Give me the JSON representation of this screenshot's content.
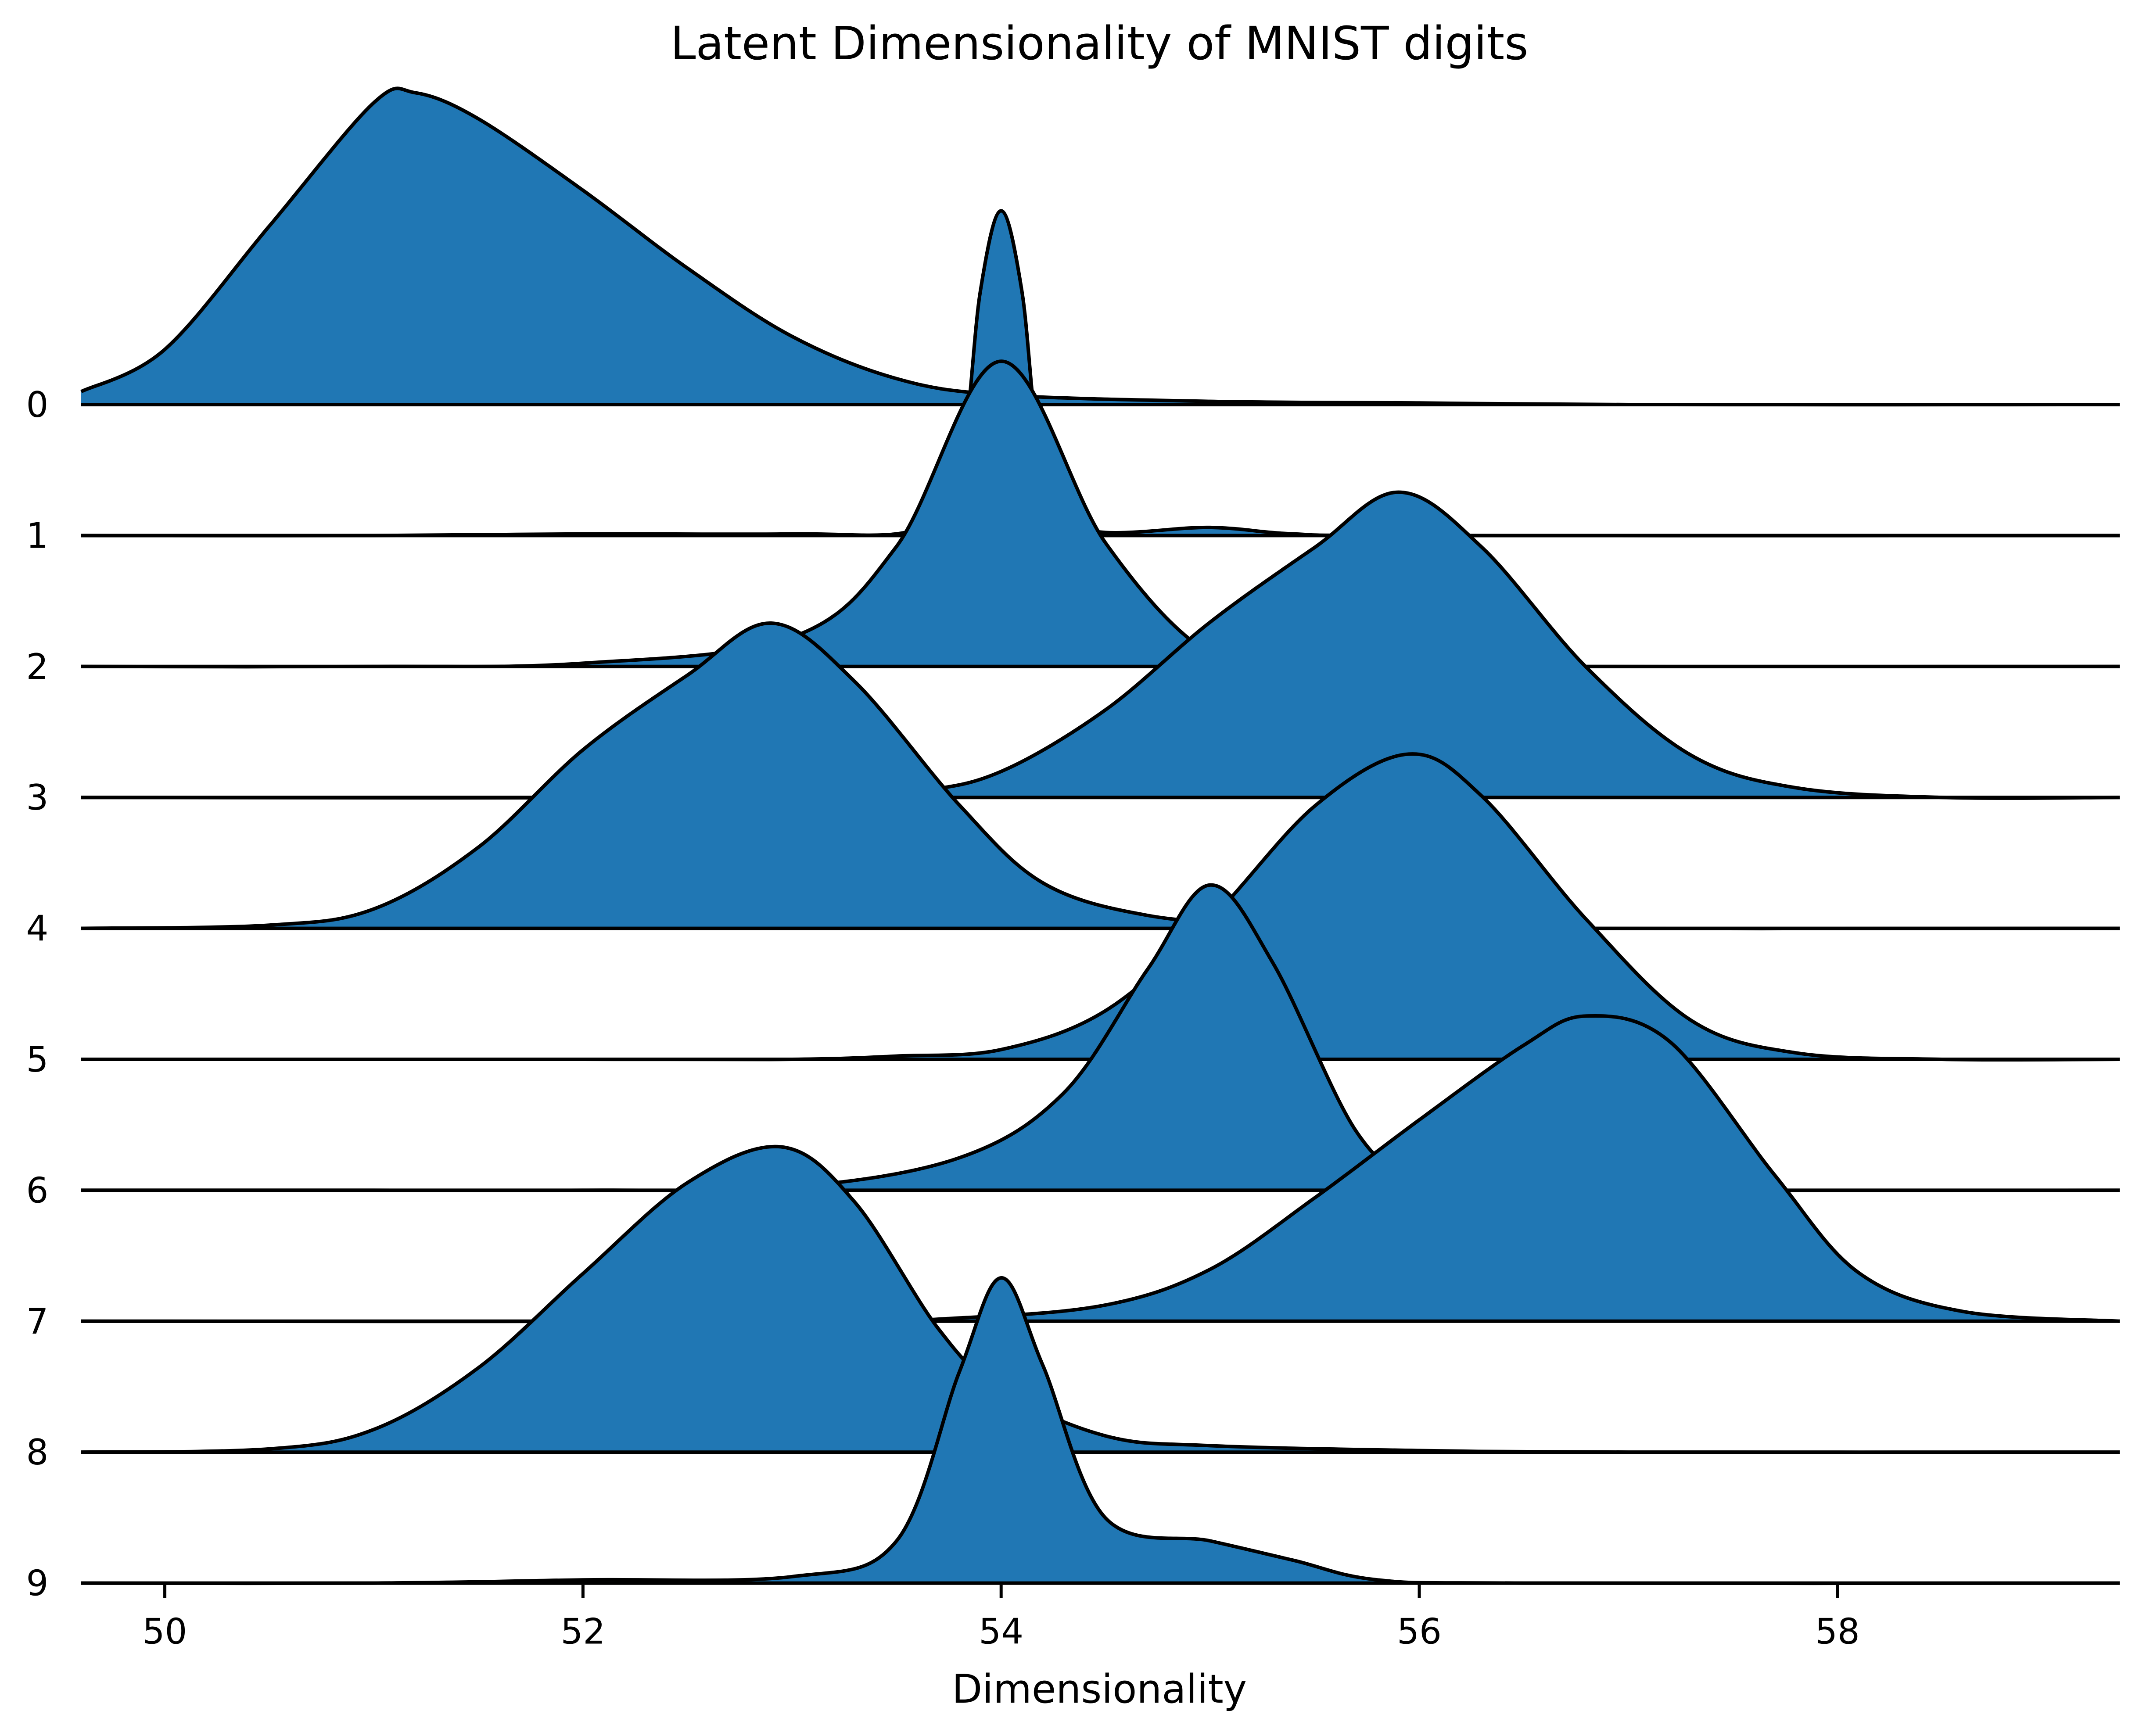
{
  "chart_data": {
    "type": "area",
    "subtype": "ridgeline",
    "title": "Latent Dimensionality of MNIST digits",
    "xlabel": "Dimensionality",
    "ylabel": "",
    "xlim": [
      49.6,
      59.35
    ],
    "xticks": [
      50,
      52,
      54,
      56,
      58
    ],
    "xtick_labels": [
      "50",
      "52",
      "54",
      "56",
      "58"
    ],
    "grid": false,
    "legend": "none",
    "fill_color": "#2077b4",
    "line_color": "#000000",
    "categories": [
      "0",
      "1",
      "2",
      "3",
      "4",
      "5",
      "6",
      "7",
      "8",
      "9"
    ],
    "series": [
      {
        "name": "0",
        "points": [
          [
            49.6,
            0.04
          ],
          [
            50.0,
            0.17
          ],
          [
            50.5,
            0.55
          ],
          [
            51.0,
            0.93
          ],
          [
            51.2,
            0.96
          ],
          [
            51.5,
            0.88
          ],
          [
            52.0,
            0.66
          ],
          [
            52.5,
            0.42
          ],
          [
            53.0,
            0.21
          ],
          [
            53.5,
            0.08
          ],
          [
            54.0,
            0.03
          ],
          [
            55.0,
            0.01
          ],
          [
            56.0,
            0.005
          ],
          [
            57.0,
            0.0
          ],
          [
            59.35,
            0.0
          ]
        ]
      },
      {
        "name": "1",
        "points": [
          [
            49.6,
            0.0
          ],
          [
            51.0,
            0.0
          ],
          [
            52.0,
            0.005
          ],
          [
            53.0,
            0.005
          ],
          [
            53.6,
            0.02
          ],
          [
            53.8,
            0.2
          ],
          [
            53.9,
            0.75
          ],
          [
            54.0,
            1.0
          ],
          [
            54.1,
            0.75
          ],
          [
            54.2,
            0.2
          ],
          [
            54.4,
            0.02
          ],
          [
            55.0,
            0.025
          ],
          [
            55.4,
            0.005
          ],
          [
            56.0,
            0.0
          ],
          [
            59.35,
            0.0
          ]
        ]
      },
      {
        "name": "2",
        "points": [
          [
            49.6,
            0.0
          ],
          [
            51.0,
            0.0
          ],
          [
            52.0,
            0.01
          ],
          [
            53.0,
            0.09
          ],
          [
            53.5,
            0.37
          ],
          [
            54.0,
            0.94
          ],
          [
            54.5,
            0.38
          ],
          [
            55.0,
            0.04
          ],
          [
            55.5,
            0.005
          ],
          [
            56.0,
            0.0
          ],
          [
            59.35,
            0.0
          ]
        ]
      },
      {
        "name": "3",
        "points": [
          [
            49.6,
            0.0
          ],
          [
            53.0,
            0.0
          ],
          [
            53.6,
            0.02
          ],
          [
            54.0,
            0.08
          ],
          [
            54.5,
            0.27
          ],
          [
            55.0,
            0.54
          ],
          [
            55.5,
            0.77
          ],
          [
            55.9,
            0.94
          ],
          [
            56.3,
            0.77
          ],
          [
            56.8,
            0.4
          ],
          [
            57.3,
            0.13
          ],
          [
            57.8,
            0.03
          ],
          [
            58.5,
            0.0
          ],
          [
            59.35,
            0.0
          ]
        ]
      },
      {
        "name": "4",
        "points": [
          [
            49.6,
            0.0
          ],
          [
            50.5,
            0.01
          ],
          [
            51.0,
            0.06
          ],
          [
            51.5,
            0.25
          ],
          [
            52.0,
            0.55
          ],
          [
            52.5,
            0.78
          ],
          [
            52.9,
            0.94
          ],
          [
            53.3,
            0.76
          ],
          [
            53.8,
            0.38
          ],
          [
            54.2,
            0.14
          ],
          [
            54.7,
            0.04
          ],
          [
            55.3,
            0.01
          ],
          [
            56.0,
            0.0
          ],
          [
            59.35,
            0.0
          ]
        ]
      },
      {
        "name": "5",
        "points": [
          [
            49.6,
            0.0
          ],
          [
            52.0,
            0.0
          ],
          [
            53.0,
            0.0
          ],
          [
            53.5,
            0.01
          ],
          [
            54.0,
            0.03
          ],
          [
            54.5,
            0.15
          ],
          [
            55.0,
            0.43
          ],
          [
            55.5,
            0.78
          ],
          [
            55.95,
            0.94
          ],
          [
            56.3,
            0.81
          ],
          [
            56.8,
            0.43
          ],
          [
            57.3,
            0.12
          ],
          [
            57.8,
            0.02
          ],
          [
            58.5,
            0.0
          ],
          [
            59.35,
            0.0
          ]
        ]
      },
      {
        "name": "6",
        "points": [
          [
            49.6,
            0.0
          ],
          [
            51.0,
            0.0
          ],
          [
            52.0,
            0.0
          ],
          [
            53.0,
            0.01
          ],
          [
            53.8,
            0.1
          ],
          [
            54.3,
            0.3
          ],
          [
            54.7,
            0.68
          ],
          [
            55.0,
            0.94
          ],
          [
            55.3,
            0.7
          ],
          [
            55.7,
            0.18
          ],
          [
            56.0,
            0.04
          ],
          [
            56.5,
            0.01
          ],
          [
            57.0,
            0.0
          ],
          [
            59.35,
            0.0
          ]
        ]
      },
      {
        "name": "7",
        "points": [
          [
            49.6,
            0.0
          ],
          [
            53.0,
            0.0
          ],
          [
            53.8,
            0.01
          ],
          [
            54.5,
            0.05
          ],
          [
            55.0,
            0.16
          ],
          [
            55.5,
            0.38
          ],
          [
            56.0,
            0.62
          ],
          [
            56.5,
            0.85
          ],
          [
            56.8,
            0.94
          ],
          [
            57.2,
            0.86
          ],
          [
            57.7,
            0.45
          ],
          [
            58.1,
            0.15
          ],
          [
            58.6,
            0.03
          ],
          [
            59.35,
            0.0
          ]
        ]
      },
      {
        "name": "8",
        "points": [
          [
            49.6,
            0.0
          ],
          [
            50.5,
            0.01
          ],
          [
            51.0,
            0.07
          ],
          [
            51.5,
            0.26
          ],
          [
            52.0,
            0.55
          ],
          [
            52.5,
            0.83
          ],
          [
            52.95,
            0.94
          ],
          [
            53.3,
            0.77
          ],
          [
            53.7,
            0.38
          ],
          [
            54.0,
            0.19
          ],
          [
            54.5,
            0.05
          ],
          [
            55.0,
            0.02
          ],
          [
            56.0,
            0.005
          ],
          [
            57.0,
            0.0
          ],
          [
            59.35,
            0.0
          ]
        ]
      },
      {
        "name": "9",
        "points": [
          [
            49.6,
            0.0
          ],
          [
            51.0,
            0.0
          ],
          [
            52.0,
            0.01
          ],
          [
            53.0,
            0.02
          ],
          [
            53.5,
            0.13
          ],
          [
            53.8,
            0.65
          ],
          [
            54.0,
            0.94
          ],
          [
            54.2,
            0.67
          ],
          [
            54.5,
            0.2
          ],
          [
            55.0,
            0.13
          ],
          [
            55.4,
            0.07
          ],
          [
            55.8,
            0.01
          ],
          [
            56.5,
            0.0
          ],
          [
            59.35,
            0.0
          ]
        ]
      }
    ]
  }
}
